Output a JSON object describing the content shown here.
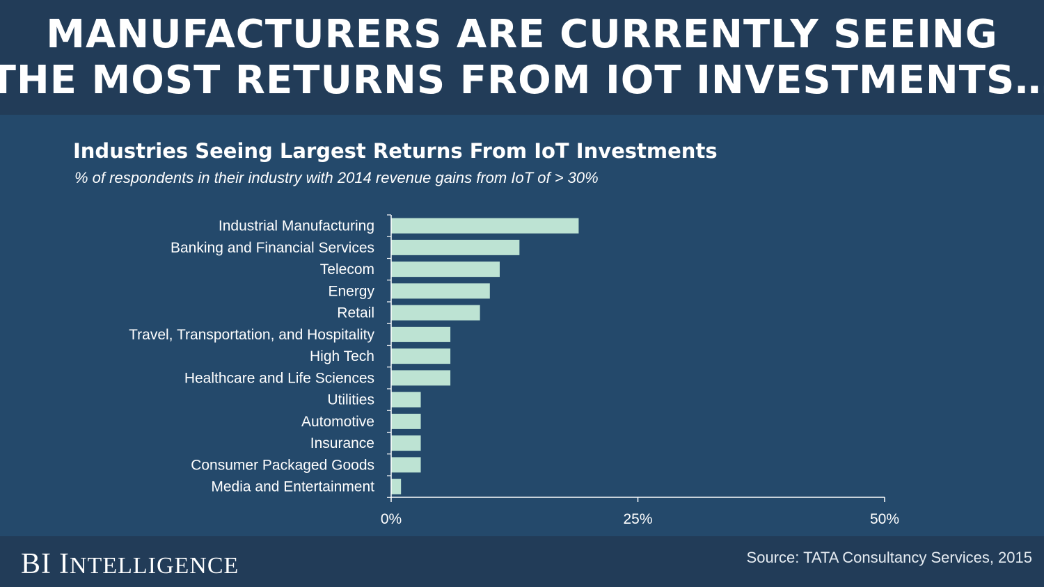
{
  "header": {
    "line1": "MANUFACTURERS ARE CURRENTLY SEEING",
    "line2": "THE MOST RETURNS FROM IOT INVESTMENTS…"
  },
  "footer": {
    "logo": "BI Intelligence",
    "source": "Source: TATA Consultancy Services, 2015"
  },
  "colors": {
    "background": "#24496b",
    "header_band": "#223c58",
    "bar": "#bde3d3",
    "axis": "#ffffff",
    "text": "#ffffff"
  },
  "chart_data": {
    "type": "bar",
    "orientation": "horizontal",
    "title": "Industries Seeing Largest Returns From IoT Investments",
    "subtitle": "% of respondents in their industry with 2014 revenue gains from IoT of > 30%",
    "categories": [
      "Industrial Manufacturing",
      "Banking and Financial Services",
      "Telecom",
      "Energy",
      "Retail",
      "Travel, Transportation, and Hospitality",
      "High Tech",
      "Healthcare and Life Sciences",
      "Utilities",
      "Automotive",
      "Insurance",
      "Consumer Packaged Goods",
      "Media and Entertainment"
    ],
    "values": [
      19,
      13,
      11,
      10,
      9,
      6,
      6,
      6,
      3,
      3,
      3,
      3,
      1
    ],
    "xlim": [
      0,
      50
    ],
    "xticks": [
      0,
      25,
      50
    ],
    "xtick_labels": [
      "0%",
      "25%",
      "50%"
    ],
    "grid": false,
    "legend": "none"
  }
}
